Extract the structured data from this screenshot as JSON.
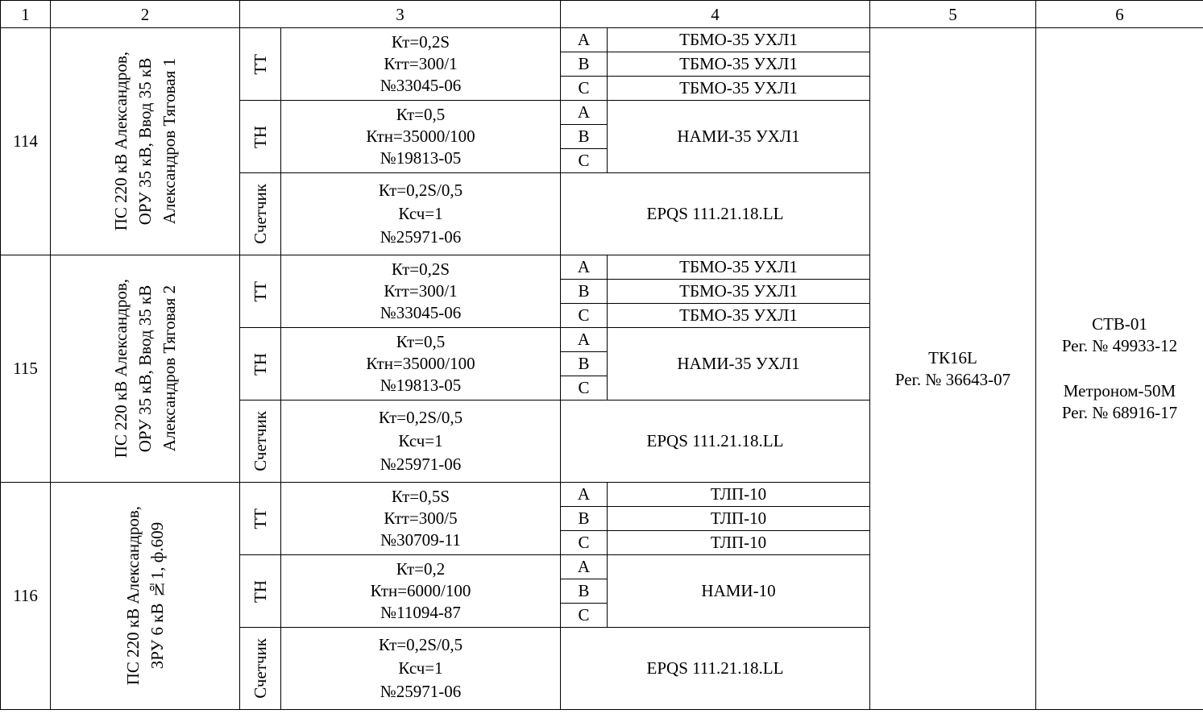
{
  "header": [
    "1",
    "2",
    "3",
    "4",
    "5",
    "6"
  ],
  "rows": [
    {
      "num": "114",
      "name": [
        "ПС 220 кВ Александров,",
        "ОРУ 35 кВ, Ввод 35 кВ",
        "Александров Тяговая 1"
      ],
      "tt": {
        "kind": "ТТ",
        "params": [
          "Кт=0,2S",
          "Ктт=300/1",
          "№33045-06"
        ],
        "phases": [
          {
            "phase": "A",
            "type": "ТБМО-35 УХЛ1"
          },
          {
            "phase": "B",
            "type": "ТБМО-35 УХЛ1"
          },
          {
            "phase": "C",
            "type": "ТБМО-35 УХЛ1"
          }
        ]
      },
      "tn": {
        "kind": "ТН",
        "params": [
          "Кт=0,5",
          "Ктн=35000/100",
          "№19813-05"
        ],
        "phases": [
          "A",
          "B",
          "C"
        ],
        "type": "НАМИ-35 УХЛ1"
      },
      "meter": {
        "kind": "Счетчик",
        "params": [
          "Кт=0,2S/0,5",
          "Ксч=1",
          "№25971-06"
        ],
        "type": "EPQS 111.21.18.LL"
      }
    },
    {
      "num": "115",
      "name": [
        "ПС 220 кВ Александров,",
        "ОРУ 35 кВ, Ввод 35 кВ",
        "Александров Тяговая 2"
      ],
      "tt": {
        "kind": "ТТ",
        "params": [
          "Кт=0,2S",
          "Ктт=300/1",
          "№33045-06"
        ],
        "phases": [
          {
            "phase": "A",
            "type": "ТБМО-35 УХЛ1"
          },
          {
            "phase": "B",
            "type": "ТБМО-35 УХЛ1"
          },
          {
            "phase": "C",
            "type": "ТБМО-35 УХЛ1"
          }
        ]
      },
      "tn": {
        "kind": "ТН",
        "params": [
          "Кт=0,5",
          "Ктн=35000/100",
          "№19813-05"
        ],
        "phases": [
          "A",
          "B",
          "C"
        ],
        "type": "НАМИ-35 УХЛ1"
      },
      "meter": {
        "kind": "Счетчик",
        "params": [
          "Кт=0,2S/0,5",
          "Ксч=1",
          "№25971-06"
        ],
        "type": "EPQS 111.21.18.LL"
      }
    },
    {
      "num": "116",
      "name": [
        "ПС 220 кВ Александров,",
        "ЗРУ 6 кВ №1, ф.609"
      ],
      "tt": {
        "kind": "ТТ",
        "params": [
          "Кт=0,5S",
          "Ктт=300/5",
          "№30709-11"
        ],
        "phases": [
          {
            "phase": "A",
            "type": "ТЛП-10"
          },
          {
            "phase": "B",
            "type": "ТЛП-10"
          },
          {
            "phase": "C",
            "type": "ТЛП-10"
          }
        ]
      },
      "tn": {
        "kind": "ТН",
        "params": [
          "Кт=0,2",
          "Ктн=6000/100",
          "№11094-87"
        ],
        "phases": [
          "A",
          "B",
          "C"
        ],
        "type": "НАМИ-10"
      },
      "meter": {
        "kind": "Счетчик",
        "params": [
          "Кт=0,2S/0,5",
          "Ксч=1",
          "№25971-06"
        ],
        "type": "EPQS 111.21.18.LL"
      }
    }
  ],
  "col5": [
    "ТК16L",
    "Рег. № 36643-07"
  ],
  "col6": [
    "СТВ-01",
    "Рег. № 49933-12",
    "Метроном-50М",
    "Рег. № 68916-17"
  ]
}
